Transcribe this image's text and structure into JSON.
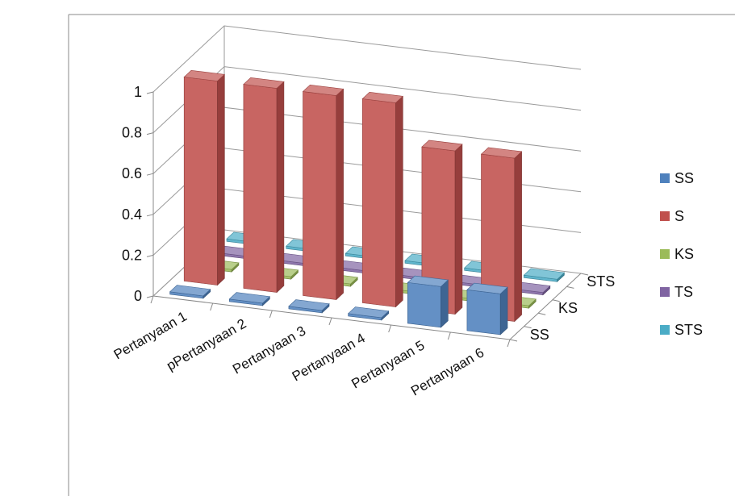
{
  "chart_data": {
    "type": "bar",
    "subtype": "3d-column",
    "categories": [
      "Pertanyaan 1",
      "pPertanyaan 2",
      "Pertanyaan 3",
      "Pertanyaan 4",
      "Pertanyaan 5",
      "Pertanyaan 6"
    ],
    "series": [
      {
        "name": "SS",
        "color": "#4F81BD",
        "values": [
          0,
          0,
          0,
          0,
          0.2,
          0.2
        ]
      },
      {
        "name": "S",
        "color": "#C0504D",
        "values": [
          1,
          1,
          1,
          1,
          0.8,
          0.8
        ]
      },
      {
        "name": "KS",
        "color": "#9BBB59",
        "values": [
          0,
          0,
          0,
          0,
          0,
          0
        ]
      },
      {
        "name": "TS",
        "color": "#8064A2",
        "values": [
          0,
          0,
          0,
          0,
          0,
          0
        ]
      },
      {
        "name": "STS",
        "color": "#4BACC6",
        "values": [
          0,
          0,
          0,
          0,
          0,
          0
        ]
      }
    ],
    "depth_labels": [
      "SS",
      "KS",
      "STS"
    ],
    "y_ticks": [
      "0",
      "0.2",
      "0.4",
      "0.6",
      "0.8",
      "1"
    ],
    "ylim": [
      0,
      1
    ],
    "grid": true,
    "legend_position": "right"
  }
}
